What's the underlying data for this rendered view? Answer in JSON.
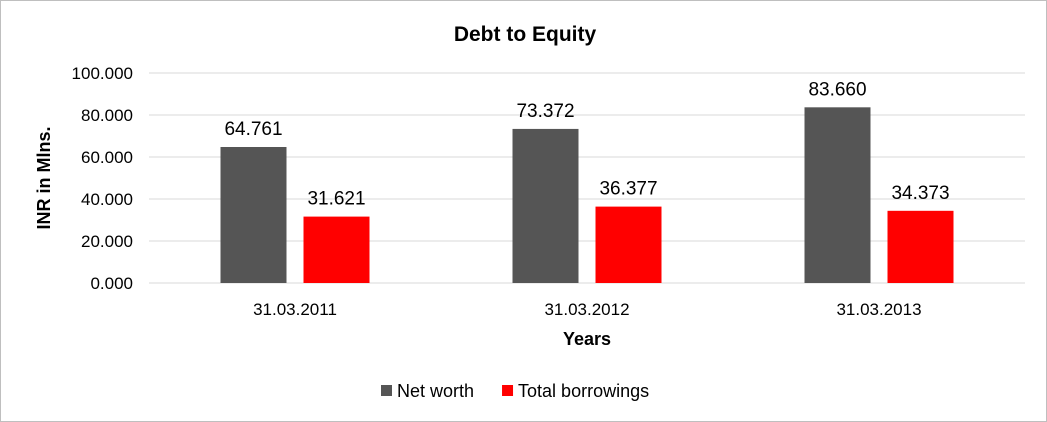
{
  "chart_data": {
    "type": "bar",
    "title": "Debt to Equity",
    "xlabel": "Years",
    "ylabel": "INR in Mlns.",
    "categories": [
      "31.03.2011",
      "31.03.2012",
      "31.03.2013"
    ],
    "series": [
      {
        "name": "Net worth",
        "values": [
          64.761,
          73.372,
          83.66
        ],
        "labels": [
          "64.761",
          "73.372",
          "83.660"
        ],
        "color": "#555555"
      },
      {
        "name": "Total borrowings",
        "values": [
          31.621,
          36.377,
          34.373
        ],
        "labels": [
          "31.621",
          "36.377",
          "34.373"
        ],
        "color": "#ff0000"
      }
    ],
    "ylim": [
      0,
      100
    ],
    "yticks": [
      "0.000",
      "20.000",
      "40.000",
      "60.000",
      "80.000",
      "100.000"
    ],
    "grid": true,
    "legend": "bottom"
  }
}
